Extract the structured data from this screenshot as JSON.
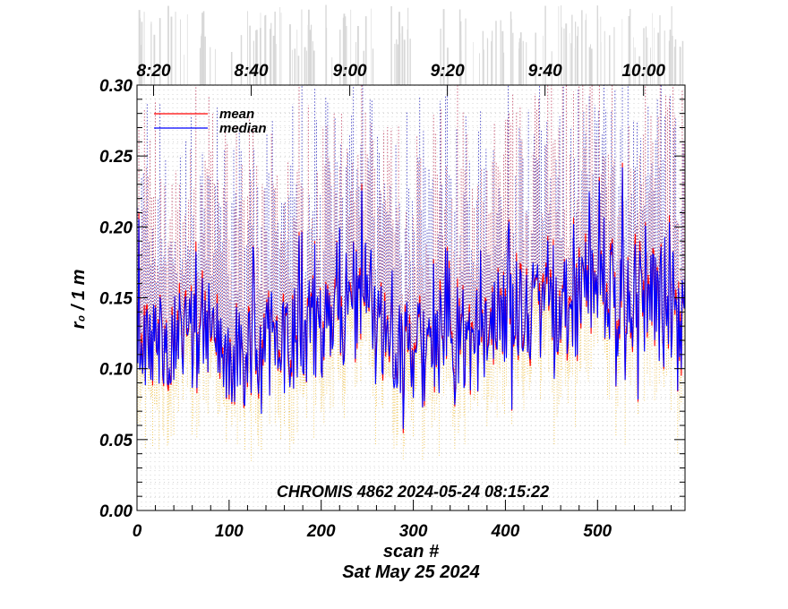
{
  "chart_data": {
    "type": "line",
    "ylabel": "r₀ / 1 m",
    "xlabel": "scan #",
    "date_label": "Sat May 25 2024",
    "annotation": "CHROMIS 4862 2024-05-24 08:15:22",
    "xlim": [
      0,
      595
    ],
    "ylim": [
      0.0,
      0.3
    ],
    "x_ticks": [
      0,
      100,
      200,
      300,
      400,
      500
    ],
    "x_tick_labels": [
      "0",
      "100",
      "200",
      "300",
      "400",
      "500"
    ],
    "y_ticks": [
      0.0,
      0.05,
      0.1,
      0.15,
      0.2,
      0.25,
      0.3
    ],
    "y_tick_labels": [
      "0.00",
      "0.05",
      "0.10",
      "0.15",
      "0.20",
      "0.25",
      "0.30"
    ],
    "top_axis": {
      "ticks": [
        18,
        124,
        231,
        337,
        443,
        550
      ],
      "labels": [
        "8:20",
        "8:40",
        "9:00",
        "9:20",
        "9:40",
        "10:00"
      ]
    },
    "legend_position": "top-left",
    "series": [
      {
        "name": "mean",
        "color": "#ff0000",
        "style": "solid"
      },
      {
        "name": "median",
        "color": "#0000ff",
        "style": "solid"
      }
    ],
    "envelope_colors": {
      "upper_dotted_mean": "#d06060",
      "upper_dotted_median": "#3030c0",
      "lower_dotted": "#f0c040"
    },
    "profile": {
      "x": [
        0,
        40,
        80,
        100,
        130,
        160,
        200,
        230,
        260,
        290,
        320,
        350,
        380,
        410,
        440,
        470,
        500,
        530,
        560,
        595
      ],
      "y": [
        0.125,
        0.125,
        0.115,
        0.11,
        0.115,
        0.12,
        0.13,
        0.14,
        0.13,
        0.115,
        0.105,
        0.11,
        0.125,
        0.14,
        0.14,
        0.14,
        0.15,
        0.155,
        0.145,
        0.13
      ]
    },
    "grid": true
  }
}
